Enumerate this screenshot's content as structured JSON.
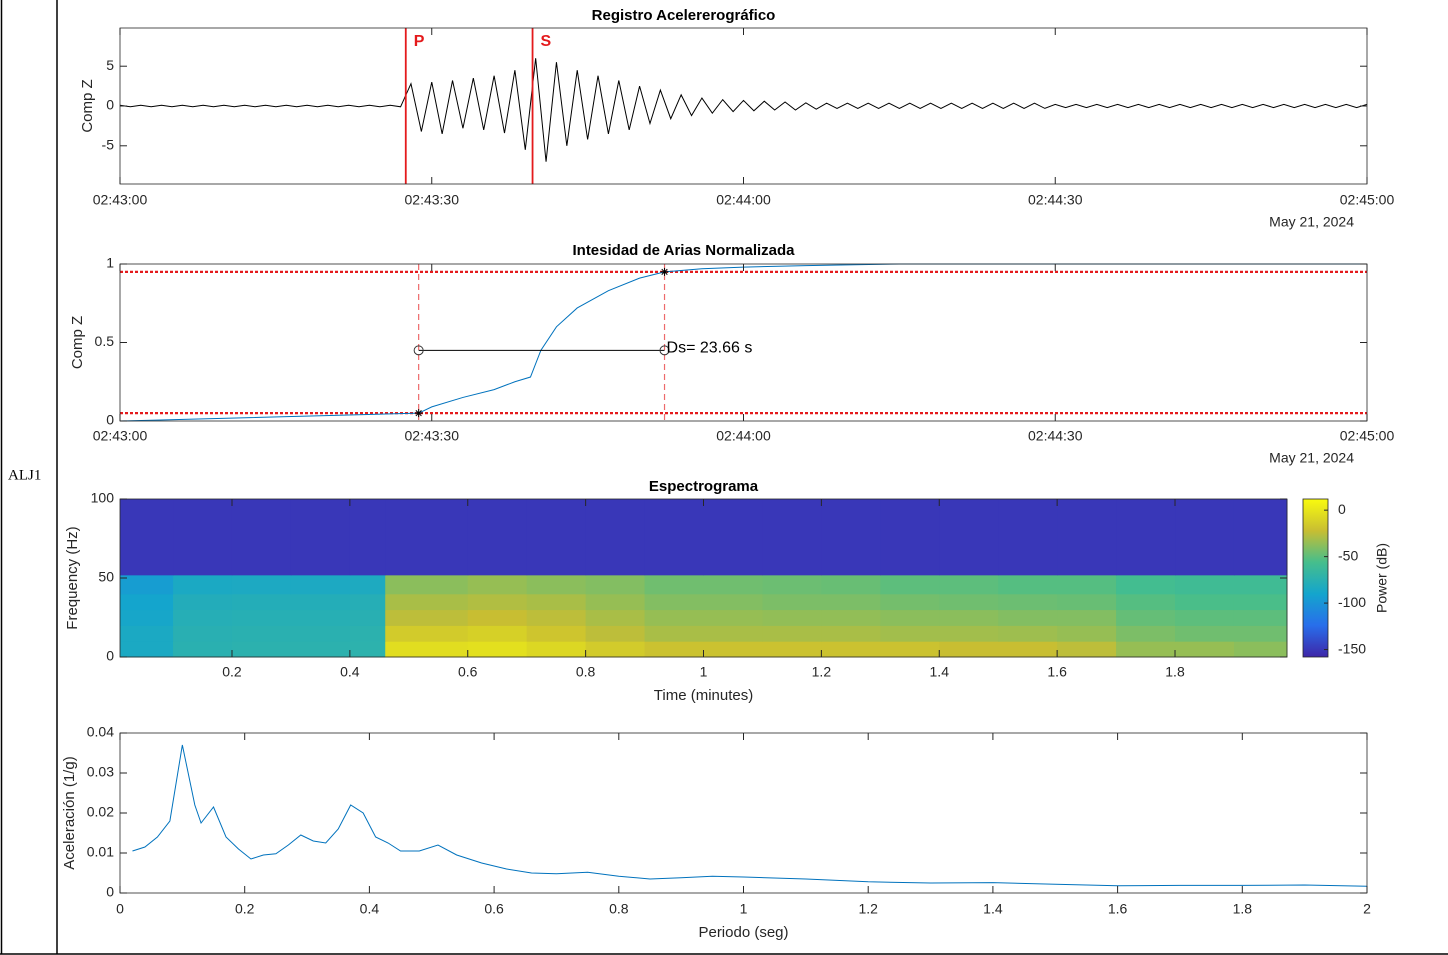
{
  "label": "ALJ1",
  "chart_data": [
    {
      "type": "line",
      "title": "Registro Acelererográfico",
      "ylabel": "Comp Z",
      "date_label": "May 21, 2024",
      "color": "#000000",
      "x": [
        0,
        1,
        2,
        3,
        4,
        5,
        6,
        7,
        8,
        9,
        10,
        11,
        12,
        13,
        14,
        15,
        16,
        17,
        18,
        19,
        20,
        21,
        22,
        23,
        24,
        25,
        26,
        27,
        28,
        29,
        30,
        31,
        32,
        33,
        34,
        35,
        36,
        37,
        38,
        39,
        40,
        41,
        42,
        43,
        44,
        45,
        46,
        47,
        48,
        49,
        50,
        51,
        52,
        53,
        54,
        55,
        56,
        57,
        58,
        59,
        60,
        61,
        62,
        63,
        64,
        65,
        66,
        67,
        68,
        69,
        70,
        71,
        72,
        73,
        74,
        75,
        76,
        77,
        78,
        79,
        80,
        81,
        82,
        83,
        84,
        85,
        86,
        87,
        88,
        89,
        90,
        91,
        92,
        93,
        94,
        95,
        96,
        97,
        98,
        99,
        100,
        101,
        102,
        103,
        104,
        105,
        106,
        107,
        108,
        109,
        110,
        111,
        112,
        113,
        114,
        115,
        116,
        117,
        118,
        119,
        120
      ],
      "values": [
        0.1,
        -0.1,
        0.1,
        -0.1,
        0.1,
        -0.1,
        0.1,
        -0.1,
        0.1,
        -0.1,
        0.1,
        -0.1,
        0.1,
        -0.1,
        0.1,
        -0.1,
        0.1,
        -0.1,
        0.1,
        -0.1,
        0.1,
        -0.1,
        0.1,
        -0.1,
        0.1,
        -0.1,
        0.1,
        -0.1,
        2.8,
        -3.2,
        3.0,
        -3.5,
        3.2,
        -2.8,
        3.5,
        -3.0,
        3.8,
        -3.4,
        4.5,
        -5.5,
        6.0,
        -7.0,
        5.5,
        -5.0,
        4.5,
        -4.2,
        3.8,
        -3.5,
        3.2,
        -3.0,
        2.5,
        -2.2,
        2.0,
        -1.6,
        1.4,
        -1.2,
        1.0,
        -0.9,
        0.8,
        -0.7,
        0.7,
        -0.6,
        0.6,
        -0.5,
        0.5,
        -0.5,
        0.4,
        -0.4,
        0.35,
        -0.3,
        0.35,
        -0.3,
        0.35,
        -0.3,
        0.35,
        -0.3,
        0.35,
        -0.3,
        0.35,
        -0.3,
        0.35,
        -0.3,
        0.35,
        -0.3,
        0.35,
        -0.3,
        0.35,
        -0.3,
        0.35,
        -0.3,
        0.2,
        -0.2,
        0.2,
        -0.2,
        0.2,
        -0.2,
        0.2,
        -0.2,
        0.2,
        -0.2,
        0.2,
        -0.2,
        0.2,
        -0.2,
        0.2,
        -0.2,
        0.2,
        -0.2,
        0.2,
        -0.2,
        0.2,
        -0.2,
        0.2,
        -0.2,
        0.2,
        -0.2,
        0.2,
        -0.2,
        0.2,
        -0.2,
        0.2
      ],
      "xlim": [
        0,
        120
      ],
      "xticks": [
        {
          "value": 0,
          "label": "02:43:00"
        },
        {
          "value": 30,
          "label": "02:43:30"
        },
        {
          "value": 60,
          "label": "02:44:00"
        },
        {
          "value": 90,
          "label": "02:44:30"
        },
        {
          "value": 120,
          "label": "02:45:00"
        }
      ],
      "ylim": [
        -9.8,
        9.8
      ],
      "yticks": [
        -5,
        0,
        5
      ],
      "phases": [
        {
          "x": 27.5,
          "label": "P"
        },
        {
          "x": 39.7,
          "label": "S"
        }
      ],
      "phase_color": "#e41a1c"
    },
    {
      "type": "line",
      "title": "Intesidad de Arias Normalizada",
      "ylabel": "Comp Z",
      "date_label": "May 21, 2024",
      "color": "#0072bd",
      "x": [
        0,
        28.74,
        30,
        33,
        36,
        38,
        39.5,
        40.5,
        42,
        44,
        47,
        50,
        52.4,
        56,
        60,
        66,
        75,
        90,
        120
      ],
      "values": [
        0,
        0.05,
        0.09,
        0.15,
        0.2,
        0.25,
        0.28,
        0.45,
        0.6,
        0.72,
        0.83,
        0.91,
        0.95,
        0.97,
        0.98,
        0.99,
        1,
        1,
        1
      ],
      "xlim": [
        0,
        120
      ],
      "xticks": [
        {
          "value": 0,
          "label": "02:43:00"
        },
        {
          "value": 30,
          "label": "02:43:30"
        },
        {
          "value": 60,
          "label": "02:44:00"
        },
        {
          "value": 90,
          "label": "02:44:30"
        },
        {
          "value": 120,
          "label": "02:45:00"
        }
      ],
      "ylim": [
        0,
        1
      ],
      "yticks": [
        0,
        0.5,
        1
      ],
      "thresholds": [
        0.05,
        0.95
      ],
      "threshold_color": "#e41a1c",
      "markers": {
        "x": [
          28.74,
          52.4
        ],
        "y": [
          0.05,
          0.95
        ]
      },
      "duration": {
        "x": [
          28.74,
          52.4
        ],
        "y": 0.45,
        "label": "Ds= 23.66 s"
      }
    },
    {
      "type": "heatmap",
      "title": "Espectrograma",
      "xlabel": "Time (minutes)",
      "ylabel": "Frequency (Hz)",
      "colorbar_label": "Power (dB)",
      "xbins": [
        0.01,
        0.1,
        0.2,
        0.3,
        0.4,
        0.46,
        0.6,
        0.7,
        0.8,
        0.9,
        1.0,
        1.1,
        1.2,
        1.3,
        1.4,
        1.5,
        1.6,
        1.7,
        1.8,
        1.9,
        1.99
      ],
      "ybins": [
        0,
        10,
        20,
        30,
        40,
        52,
        100
      ],
      "z": [
        [
          -85,
          -75,
          -74,
          -74,
          -73,
          -5,
          -3,
          -8,
          -15,
          -20,
          -20,
          -20,
          -20,
          -20,
          -22,
          -22,
          -25,
          -35,
          -35,
          -38
        ],
        [
          -85,
          -76,
          -75,
          -75,
          -74,
          -15,
          -12,
          -18,
          -25,
          -30,
          -30,
          -30,
          -30,
          -32,
          -32,
          -33,
          -35,
          -42,
          -45,
          -45
        ],
        [
          -88,
          -78,
          -77,
          -77,
          -76,
          -25,
          -22,
          -25,
          -30,
          -35,
          -35,
          -36,
          -36,
          -38,
          -38,
          -40,
          -40,
          -48,
          -50,
          -50
        ],
        [
          -90,
          -80,
          -79,
          -79,
          -78,
          -30,
          -28,
          -30,
          -35,
          -40,
          -40,
          -42,
          -42,
          -44,
          -45,
          -46,
          -47,
          -52,
          -55,
          -55
        ],
        [
          -95,
          -85,
          -84,
          -84,
          -83,
          -38,
          -35,
          -38,
          -40,
          -45,
          -45,
          -46,
          -47,
          -50,
          -50,
          -52,
          -52,
          -58,
          -60,
          -60
        ],
        [
          -150,
          -150,
          -150,
          -150,
          -150,
          -150,
          -150,
          -150,
          -150,
          -150,
          -150,
          -150,
          -150,
          -150,
          -150,
          -150,
          -150,
          -150,
          -150,
          -150
        ]
      ],
      "xlim": [
        0.01,
        1.99
      ],
      "xticks": [
        0.2,
        0.4,
        0.6,
        0.8,
        1,
        1.2,
        1.4,
        1.6,
        1.8
      ],
      "ylim": [
        0,
        100
      ],
      "yticks": [
        0,
        50,
        100
      ],
      "clim": [
        -158,
        12
      ],
      "cticks": [
        0,
        -50,
        -100,
        -150
      ]
    },
    {
      "type": "line",
      "xlabel": "Periodo (seg)",
      "ylabel": "Aceleración (1/g)",
      "color": "#0072bd",
      "x": [
        0.02,
        0.04,
        0.06,
        0.08,
        0.1,
        0.12,
        0.13,
        0.15,
        0.17,
        0.19,
        0.21,
        0.23,
        0.25,
        0.27,
        0.29,
        0.31,
        0.33,
        0.35,
        0.37,
        0.39,
        0.41,
        0.43,
        0.45,
        0.48,
        0.51,
        0.54,
        0.58,
        0.62,
        0.66,
        0.7,
        0.75,
        0.8,
        0.85,
        0.9,
        0.95,
        1.0,
        1.1,
        1.2,
        1.3,
        1.4,
        1.5,
        1.6,
        1.7,
        1.8,
        1.9,
        2.0
      ],
      "values": [
        0.0105,
        0.0115,
        0.014,
        0.018,
        0.037,
        0.022,
        0.0175,
        0.0215,
        0.014,
        0.011,
        0.0085,
        0.0095,
        0.0098,
        0.012,
        0.0145,
        0.013,
        0.0125,
        0.016,
        0.022,
        0.02,
        0.014,
        0.0125,
        0.0105,
        0.0105,
        0.012,
        0.0095,
        0.0075,
        0.006,
        0.005,
        0.0048,
        0.0052,
        0.0042,
        0.0035,
        0.0038,
        0.0042,
        0.004,
        0.0035,
        0.0028,
        0.0025,
        0.0026,
        0.0022,
        0.0018,
        0.0019,
        0.0019,
        0.002,
        0.0017
      ],
      "xlim": [
        0,
        2
      ],
      "xticks": [
        0,
        0.2,
        0.4,
        0.6,
        0.8,
        1,
        1.2,
        1.4,
        1.6,
        1.8,
        2
      ],
      "ylim": [
        0,
        0.04
      ],
      "yticks": [
        0,
        0.01,
        0.02,
        0.03,
        0.04
      ]
    }
  ]
}
